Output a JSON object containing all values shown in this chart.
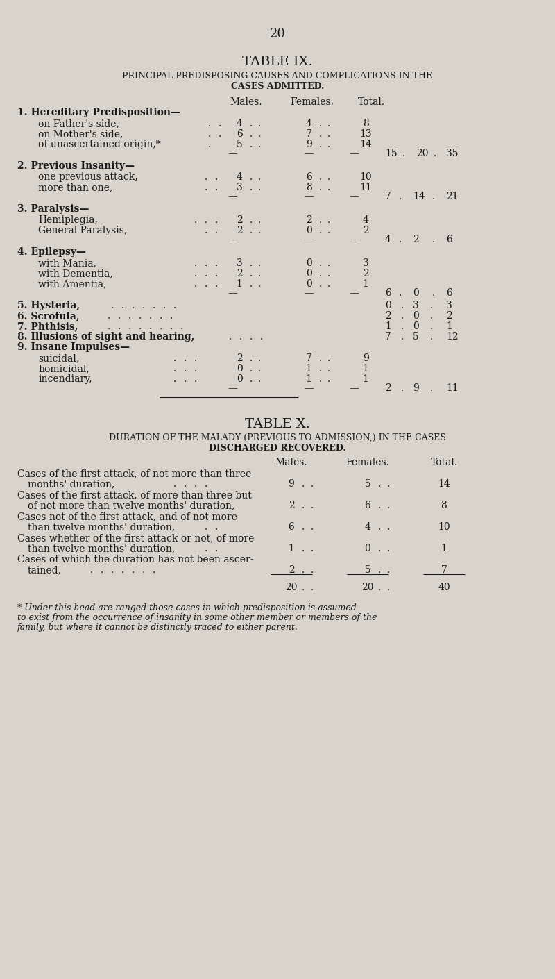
{
  "page_number": "20",
  "bg_color": "#d8d4cc",
  "text_color": "#1a1a1a",
  "table_ix_title": "TABLE IX.",
  "table_ix_subtitle1": "PRINCIPAL PREDISPOSING CAUSES AND COMPLICATIONS IN THE",
  "table_ix_subtitle2": "CASES ADMITTED.",
  "table_x_title": "TABLE X.",
  "table_x_subtitle1": "DURATION OF THE MALADY (PREVIOUS TO ADMISSION,) IN THE CASES",
  "table_x_subtitle2": "DISCHARGED RECOVERED.",
  "footnote": "* Under this head are ranged those cases in which predisposition is assumed\nto exist from the occurrence of insanity in some other member or members of the\nfamily, but where it cannot be distinctly traced to either parent."
}
